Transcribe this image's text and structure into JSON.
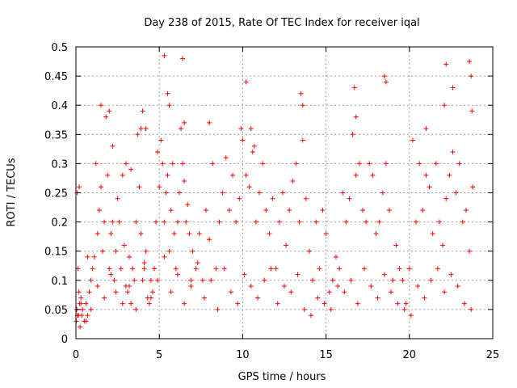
{
  "chart_data": {
    "type": "scatter",
    "title": "Day 238 of 2015, Rate Of TEC Index for receiver iqal",
    "xlabel": "GPS time / hours",
    "ylabel": "ROTI / TECUs",
    "xlim": [
      0,
      25
    ],
    "ylim": [
      0,
      0.5
    ],
    "xticks": [
      "0",
      "5",
      "10",
      "15",
      "20",
      "25"
    ],
    "yticks": [
      "0",
      "0.05",
      "0.1",
      "0.15",
      "0.2",
      "0.25",
      "0.3",
      "0.35",
      "0.4",
      "0.45",
      "0.5"
    ],
    "grid": true,
    "marker": "+",
    "marker_color": "#ff0000",
    "series": [
      {
        "x": [
          0.02,
          0.05,
          0.08,
          0.12,
          0.15,
          0.18,
          0.22,
          0.25,
          0.3,
          0.35,
          0.4,
          0.5,
          0.6,
          0.7,
          0.8,
          0.9,
          1.0,
          1.1,
          1.2,
          1.3,
          1.4,
          1.5,
          1.6,
          1.7,
          1.8,
          1.9,
          2.0,
          2.1,
          2.2,
          2.3,
          2.4,
          2.5,
          2.6,
          2.7,
          2.8,
          2.9,
          3.0,
          3.1,
          3.2,
          3.3,
          3.4,
          3.5,
          3.6,
          3.7,
          3.8,
          3.9,
          4.0,
          4.1,
          4.2,
          4.3,
          4.4,
          4.5,
          4.6,
          4.7,
          4.8,
          4.9,
          5.0,
          5.1,
          5.2,
          5.3,
          5.4,
          5.5,
          5.6,
          5.7,
          5.8,
          5.9,
          6.0,
          6.1,
          6.2,
          6.3,
          6.4,
          6.5,
          6.6,
          6.7,
          6.8,
          6.9,
          7.0,
          7.2,
          7.4,
          7.6,
          7.8,
          8.0,
          8.2,
          8.4,
          8.6,
          8.8,
          9.0,
          9.2,
          9.4,
          9.6,
          9.8,
          10.0,
          10.2,
          10.4,
          10.6,
          10.8,
          11.0,
          11.2,
          11.4,
          11.6,
          11.8,
          12.0,
          12.2,
          12.4,
          12.6,
          12.8,
          13.0,
          13.2,
          13.4,
          13.6,
          13.8,
          14.0,
          14.2,
          14.4,
          14.6,
          14.8,
          15.0,
          15.2,
          15.4,
          15.6,
          15.8,
          16.0,
          16.2,
          16.4,
          16.6,
          16.8,
          17.0,
          17.2,
          17.4,
          17.6,
          17.8,
          18.0,
          18.2,
          18.4,
          18.6,
          18.8,
          19.0,
          19.2,
          19.4,
          19.6,
          19.8,
          20.0,
          20.2,
          20.4,
          20.6,
          20.8,
          21.0,
          21.2,
          21.4,
          21.6,
          21.8,
          22.0,
          22.2,
          22.4,
          22.6,
          22.8,
          23.0,
          23.2,
          23.4,
          23.6,
          23.8,
          0.1,
          0.3,
          0.6,
          0.9,
          1.3,
          1.7,
          2.1,
          2.4,
          2.8,
          3.2,
          3.6,
          4.1,
          4.5,
          4.9,
          5.3,
          5.7,
          6.1,
          6.5,
          6.9,
          7.3,
          7.7,
          8.1,
          8.5,
          8.9,
          9.3,
          9.7,
          10.1,
          10.5,
          10.9,
          11.3,
          11.7,
          12.1,
          12.5,
          12.9,
          13.3,
          13.7,
          14.1,
          14.5,
          14.9,
          15.3,
          15.7,
          16.1,
          16.5,
          16.9,
          17.3,
          17.7,
          18.1,
          18.5,
          18.9,
          19.3,
          19.7,
          20.1,
          20.5,
          20.9,
          21.3,
          21.7,
          22.1,
          22.5,
          22.9,
          23.3,
          23.7,
          0.2,
          0.7,
          1.5,
          2.0,
          2.2,
          3.0,
          3.3,
          3.9,
          4.0,
          4.2,
          5.3,
          5.5,
          5.6,
          6.4,
          6.5,
          8.0,
          9.9,
          10.2,
          10.5,
          10.7,
          13.5,
          13.6,
          16.7,
          16.8,
          18.5,
          18.6,
          21.0,
          22.1,
          22.2,
          22.6,
          23.6,
          23.7,
          23.75
        ],
        "y": [
          0.03,
          0.05,
          0.25,
          0.12,
          0.04,
          0.08,
          0.06,
          0.02,
          0.07,
          0.04,
          0.05,
          0.03,
          0.06,
          0.04,
          0.08,
          0.1,
          0.12,
          0.14,
          0.3,
          0.18,
          0.22,
          0.26,
          0.15,
          0.2,
          0.38,
          0.28,
          0.12,
          0.18,
          0.2,
          0.1,
          0.15,
          0.24,
          0.2,
          0.12,
          0.28,
          0.16,
          0.09,
          0.08,
          0.14,
          0.06,
          0.12,
          0.1,
          0.2,
          0.35,
          0.26,
          0.18,
          0.1,
          0.13,
          0.15,
          0.07,
          0.06,
          0.1,
          0.08,
          0.12,
          0.2,
          0.32,
          0.26,
          0.34,
          0.3,
          0.2,
          0.25,
          0.28,
          0.15,
          0.22,
          0.3,
          0.18,
          0.12,
          0.2,
          0.25,
          0.36,
          0.3,
          0.27,
          0.2,
          0.23,
          0.18,
          0.1,
          0.15,
          0.12,
          0.18,
          0.1,
          0.22,
          0.17,
          0.3,
          0.12,
          0.2,
          0.25,
          0.31,
          0.22,
          0.28,
          0.2,
          0.24,
          0.34,
          0.28,
          0.26,
          0.32,
          0.2,
          0.25,
          0.3,
          0.22,
          0.18,
          0.24,
          0.12,
          0.2,
          0.25,
          0.16,
          0.22,
          0.27,
          0.3,
          0.2,
          0.34,
          0.24,
          0.15,
          0.1,
          0.2,
          0.12,
          0.22,
          0.18,
          0.08,
          0.1,
          0.14,
          0.12,
          0.25,
          0.2,
          0.24,
          0.35,
          0.28,
          0.3,
          0.22,
          0.2,
          0.3,
          0.28,
          0.18,
          0.2,
          0.25,
          0.3,
          0.22,
          0.1,
          0.16,
          0.12,
          0.1,
          0.06,
          0.12,
          0.34,
          0.2,
          0.3,
          0.22,
          0.28,
          0.26,
          0.18,
          0.3,
          0.2,
          0.16,
          0.24,
          0.28,
          0.32,
          0.25,
          0.3,
          0.2,
          0.22,
          0.15,
          0.26,
          0.04,
          0.06,
          0.03,
          0.05,
          0.09,
          0.07,
          0.11,
          0.08,
          0.06,
          0.09,
          0.05,
          0.12,
          0.07,
          0.1,
          0.14,
          0.08,
          0.11,
          0.06,
          0.09,
          0.13,
          0.07,
          0.1,
          0.05,
          0.12,
          0.08,
          0.06,
          0.11,
          0.09,
          0.07,
          0.1,
          0.12,
          0.06,
          0.09,
          0.08,
          0.11,
          0.05,
          0.04,
          0.07,
          0.06,
          0.05,
          0.09,
          0.08,
          0.1,
          0.06,
          0.12,
          0.09,
          0.07,
          0.11,
          0.08,
          0.06,
          0.05,
          0.04,
          0.09,
          0.07,
          0.1,
          0.12,
          0.08,
          0.11,
          0.09,
          0.06,
          0.05,
          0.26,
          0.14,
          0.4,
          0.39,
          0.33,
          0.3,
          0.29,
          0.36,
          0.39,
          0.36,
          0.485,
          0.42,
          0.4,
          0.48,
          0.37,
          0.37,
          0.36,
          0.44,
          0.36,
          0.33,
          0.42,
          0.4,
          0.43,
          0.38,
          0.45,
          0.44,
          0.36,
          0.4,
          0.47,
          0.43,
          0.475,
          0.45,
          0.39
        ]
      }
    ]
  }
}
